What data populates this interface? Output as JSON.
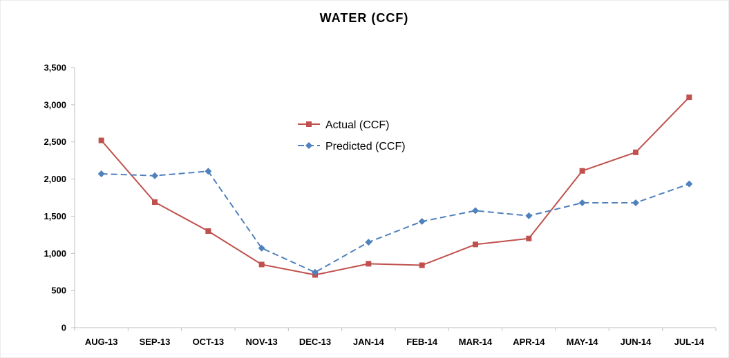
{
  "chart_data": {
    "type": "line",
    "title": "WATER (CCF)",
    "xlabel": "",
    "ylabel": "",
    "categories": [
      "AUG-13",
      "SEP-13",
      "OCT-13",
      "NOV-13",
      "DEC-13",
      "JAN-14",
      "FEB-14",
      "MAR-14",
      "APR-14",
      "MAY-14",
      "JUN-14",
      "JUL-14"
    ],
    "ylim": [
      0,
      3500
    ],
    "yticks": [
      0,
      500,
      1000,
      1500,
      2000,
      2500,
      3000,
      3500
    ],
    "ytick_labels": [
      "0",
      "500",
      "1,000",
      "1,500",
      "2,000",
      "2,500",
      "3,000",
      "3,500"
    ],
    "grid": false,
    "legend_position": "center-left",
    "series": [
      {
        "name": "Actual (CCF)",
        "color": "#c0504d",
        "marker": "square",
        "line_style": "solid",
        "values": [
          2520,
          1690,
          1300,
          850,
          710,
          860,
          840,
          1120,
          1200,
          2110,
          2360,
          3100
        ]
      },
      {
        "name": "Predicted (CCF)",
        "color": "#4f81bd",
        "marker": "diamond",
        "line_style": "dashed",
        "values": [
          2070,
          2045,
          2105,
          1070,
          745,
          1150,
          1430,
          1575,
          1505,
          1680,
          1680,
          1935
        ]
      }
    ]
  }
}
